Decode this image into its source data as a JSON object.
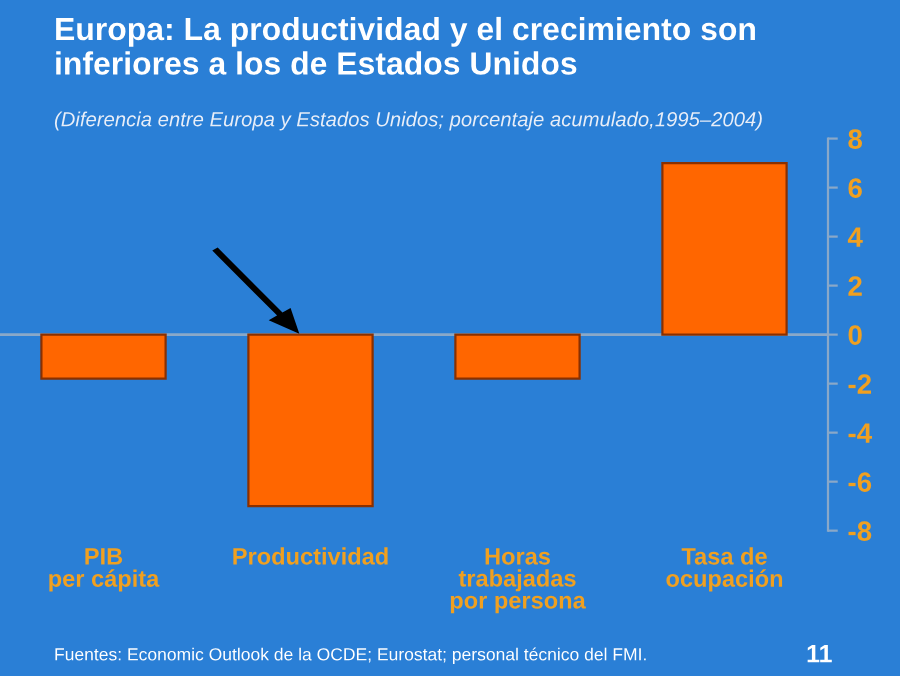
{
  "chart_data": {
    "type": "bar",
    "title": "Europa: La productividad y el crecimiento son\ninferiores a los de Estados Unidos",
    "subtitle": "(Diferencia entre Europa y Estados Unidos; porcentaje acumulado,1995–2004)",
    "categories": [
      "PIB\nper cápita",
      "Productividad",
      "Horas\ntrabajadas\npor persona",
      "Tasa de\nocupación"
    ],
    "values": [
      -1.8,
      -7.0,
      -1.8,
      7.0
    ],
    "color": "#ff6600",
    "ylim": [
      -8,
      8
    ],
    "yticks": [
      8,
      6,
      4,
      2,
      0,
      {
        "value": -2,
        "label": "-2"
      },
      {
        "value": -4,
        "label": "-4"
      },
      {
        "value": -6,
        "label": "-6"
      },
      {
        "value": -8,
        "label": "-8"
      }
    ],
    "grid": false,
    "ref_lines": [
      {
        "axis": "y",
        "value": 0,
        "color": "#8aa8c8"
      }
    ],
    "annotations": [
      "Fuentes: Economic Outlook de la OCDE; Eurostat; personal técnico del FMI.",
      "11"
    ]
  }
}
